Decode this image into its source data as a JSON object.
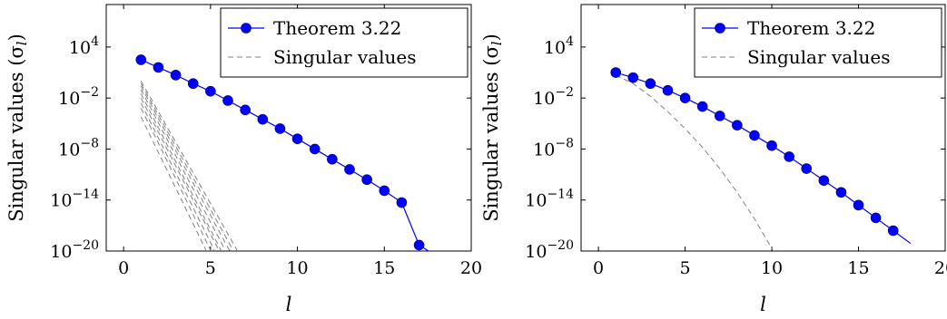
{
  "chart_data": [
    {
      "type": "line",
      "xlabel": "l",
      "ylabel": "Singular values (σ",
      "ylabel_sub": "l",
      "ylabel_close": ")",
      "xlim": [
        -1,
        20
      ],
      "ylim_exponent": [
        -20,
        9
      ],
      "yscale": "log",
      "grid": false,
      "legend_position": "top-right",
      "x_ticks": [
        0,
        5,
        10,
        15,
        20
      ],
      "y_ticks_exponent": [
        4,
        -2,
        -8,
        -14,
        -20
      ],
      "y_tick_base": "10",
      "series": [
        {
          "name": "Theorem 3.22",
          "color": "#0000ff",
          "marker": "circle",
          "x": [
            1,
            2,
            3,
            4,
            5,
            6,
            7,
            8,
            9,
            10,
            11,
            12,
            13,
            14,
            15,
            16,
            17
          ],
          "y_exponent": [
            2.5,
            1.6,
            0.7,
            -0.3,
            -1.2,
            -2.3,
            -3.4,
            -4.5,
            -5.6,
            -6.8,
            -8.0,
            -9.2,
            -10.4,
            -11.6,
            -12.9,
            -14.3,
            -19.3
          ],
          "line_extends_to_x": 18,
          "line_end_y_exponent": -20.6
        },
        {
          "name": "Singular values",
          "color": "#808080",
          "dash": "6,4",
          "group": [
            {
              "x": [
                1,
                2,
                3,
                4,
                5,
                6,
                7
              ],
              "y_exponent": [
                -3.2,
                -7.3,
                -11.5,
                -15.7,
                -19.9,
                -24.1,
                -28.3
              ]
            },
            {
              "x": [
                1,
                2,
                3,
                4,
                5,
                6,
                7
              ],
              "y_exponent": [
                -2.6,
                -6.7,
                -10.8,
                -14.9,
                -19.0,
                -23.1,
                -27.2
              ]
            },
            {
              "x": [
                1,
                2,
                3,
                4,
                5,
                6,
                7
              ],
              "y_exponent": [
                -2.0,
                -6.0,
                -10.0,
                -14.0,
                -18.0,
                -22.0,
                -26.0
              ]
            },
            {
              "x": [
                1,
                2,
                3,
                4,
                5,
                6,
                7
              ],
              "y_exponent": [
                -1.5,
                -5.5,
                -9.5,
                -13.5,
                -17.5,
                -21.5,
                -25.5
              ]
            },
            {
              "x": [
                1,
                2,
                3,
                4,
                5,
                6,
                7
              ],
              "y_exponent": [
                -1.0,
                -4.9,
                -8.8,
                -12.7,
                -16.6,
                -20.5,
                -24.4
              ]
            },
            {
              "x": [
                1,
                2,
                3,
                4,
                5,
                6,
                7
              ],
              "y_exponent": [
                -0.6,
                -4.4,
                -8.2,
                -12.0,
                -15.8,
                -19.6,
                -23.4
              ]
            },
            {
              "x": [
                1,
                2,
                3,
                4,
                5,
                6,
                7
              ],
              "y_exponent": [
                -0.3,
                -4.0,
                -7.7,
                -11.4,
                -15.1,
                -18.8,
                -22.5
              ]
            },
            {
              "x": [
                1,
                2,
                3,
                4,
                5,
                6,
                7
              ],
              "y_exponent": [
                0.0,
                -3.6,
                -7.2,
                -10.8,
                -14.4,
                -18.0,
                -21.6
              ]
            },
            {
              "x": [
                1,
                2,
                3,
                4,
                5,
                6,
                7
              ],
              "y_exponent": [
                -4.2,
                -8.4,
                -12.6,
                -16.8,
                -21.0,
                -25.2,
                -29.4
              ]
            }
          ]
        }
      ]
    },
    {
      "type": "line",
      "xlabel": "l",
      "ylabel": "Singular values (σ",
      "ylabel_sub": "l",
      "ylabel_close": ")",
      "xlim": [
        -1,
        20
      ],
      "ylim_exponent": [
        -20,
        9
      ],
      "yscale": "log",
      "grid": false,
      "legend_position": "top-right",
      "x_ticks": [
        0,
        5,
        10,
        15,
        20
      ],
      "y_ticks_exponent": [
        4,
        -2,
        -8,
        -14,
        -20
      ],
      "y_tick_base": "10",
      "series": [
        {
          "name": "Theorem 3.22",
          "color": "#0000ff",
          "marker": "circle",
          "x": [
            1,
            2,
            3,
            4,
            5,
            6,
            7,
            8,
            9,
            10,
            11,
            12,
            13,
            14,
            15,
            16,
            17
          ],
          "y_exponent": [
            1.0,
            0.4,
            -0.3,
            -1.1,
            -2.0,
            -3.0,
            -4.1,
            -5.2,
            -6.4,
            -7.6,
            -8.9,
            -10.3,
            -11.7,
            -13.1,
            -14.6,
            -16.1,
            -17.6
          ],
          "line_extends_to_x": 18,
          "line_end_y_exponent": -19.1
        },
        {
          "name": "Singular values",
          "color": "#808080",
          "dash": "6,4",
          "x": [
            1,
            2,
            3,
            4,
            5,
            6,
            7,
            8,
            9,
            10,
            10.5
          ],
          "y_exponent": [
            0.7,
            -0.3,
            -1.8,
            -3.6,
            -5.6,
            -7.8,
            -10.3,
            -13.1,
            -16.2,
            -19.7,
            -21.5
          ]
        }
      ]
    }
  ]
}
